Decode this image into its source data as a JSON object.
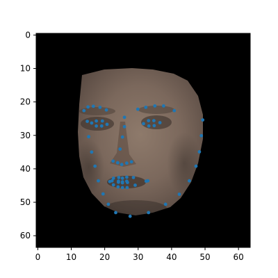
{
  "image": {
    "description_type": "face-landmarks-overlay",
    "background_color": "#000000",
    "point_color": "#1f77b4"
  },
  "axes": {
    "x_range": [
      -0.5,
      63.5
    ],
    "y_range": [
      63.5,
      -0.5
    ],
    "x_ticks": [
      0,
      10,
      20,
      30,
      40,
      50,
      60
    ],
    "y_ticks": [
      0,
      10,
      20,
      30,
      40,
      50,
      60
    ],
    "x_tick_labels": [
      "0",
      "10",
      "20",
      "30",
      "40",
      "50",
      "60"
    ],
    "y_tick_labels": [
      "0",
      "10",
      "20",
      "30",
      "40",
      "50",
      "60"
    ]
  },
  "landmarks": [
    [
      14.8,
      25.8
    ],
    [
      15.2,
      30.4
    ],
    [
      16.1,
      35.0
    ],
    [
      17.1,
      39.2
    ],
    [
      18.1,
      43.6
    ],
    [
      19.5,
      47.5
    ],
    [
      21.1,
      50.6
    ],
    [
      23.3,
      53.1
    ],
    [
      27.6,
      54.2
    ],
    [
      33.1,
      53.1
    ],
    [
      38.2,
      50.6
    ],
    [
      42.3,
      47.6
    ],
    [
      45.3,
      43.6
    ],
    [
      47.3,
      39.2
    ],
    [
      48.3,
      34.9
    ],
    [
      48.9,
      30.1
    ],
    [
      49.3,
      25.4
    ],
    [
      13.8,
      22.6
    ],
    [
      15.0,
      21.5
    ],
    [
      16.6,
      21.3
    ],
    [
      18.6,
      21.6
    ],
    [
      20.5,
      22.4
    ],
    [
      29.9,
      22.2
    ],
    [
      32.3,
      21.6
    ],
    [
      35.0,
      21.2
    ],
    [
      37.6,
      21.2
    ],
    [
      40.8,
      22.6
    ],
    [
      25.9,
      24.6
    ],
    [
      25.9,
      27.4
    ],
    [
      25.3,
      30.5
    ],
    [
      24.6,
      34.1
    ],
    [
      22.5,
      37.7
    ],
    [
      23.9,
      38.2
    ],
    [
      25.1,
      38.7
    ],
    [
      26.6,
      38.3
    ],
    [
      28.0,
      37.9
    ],
    [
      16.1,
      26.3
    ],
    [
      17.5,
      25.7
    ],
    [
      19.3,
      25.7
    ],
    [
      20.7,
      26.7
    ],
    [
      19.1,
      27.2
    ],
    [
      17.5,
      27.2
    ],
    [
      31.6,
      26.5
    ],
    [
      33.1,
      25.6
    ],
    [
      34.7,
      25.6
    ],
    [
      36.5,
      26.2
    ],
    [
      34.8,
      27.1
    ],
    [
      33.2,
      27.2
    ],
    [
      21.5,
      43.8
    ],
    [
      22.6,
      42.8
    ],
    [
      24.2,
      42.6
    ],
    [
      25.3,
      42.8
    ],
    [
      26.6,
      42.5
    ],
    [
      28.6,
      42.6
    ],
    [
      32.9,
      43.6
    ],
    [
      29.1,
      44.9
    ],
    [
      26.7,
      45.6
    ],
    [
      25.3,
      45.6
    ],
    [
      24.0,
      45.4
    ],
    [
      22.6,
      44.8
    ],
    [
      22.2,
      43.6
    ],
    [
      24.1,
      43.7
    ],
    [
      25.3,
      43.9
    ],
    [
      26.6,
      43.7
    ],
    [
      32.4,
      43.7
    ],
    [
      26.8,
      44.1
    ],
    [
      25.3,
      44.2
    ],
    [
      24.1,
      44.0
    ]
  ]
}
